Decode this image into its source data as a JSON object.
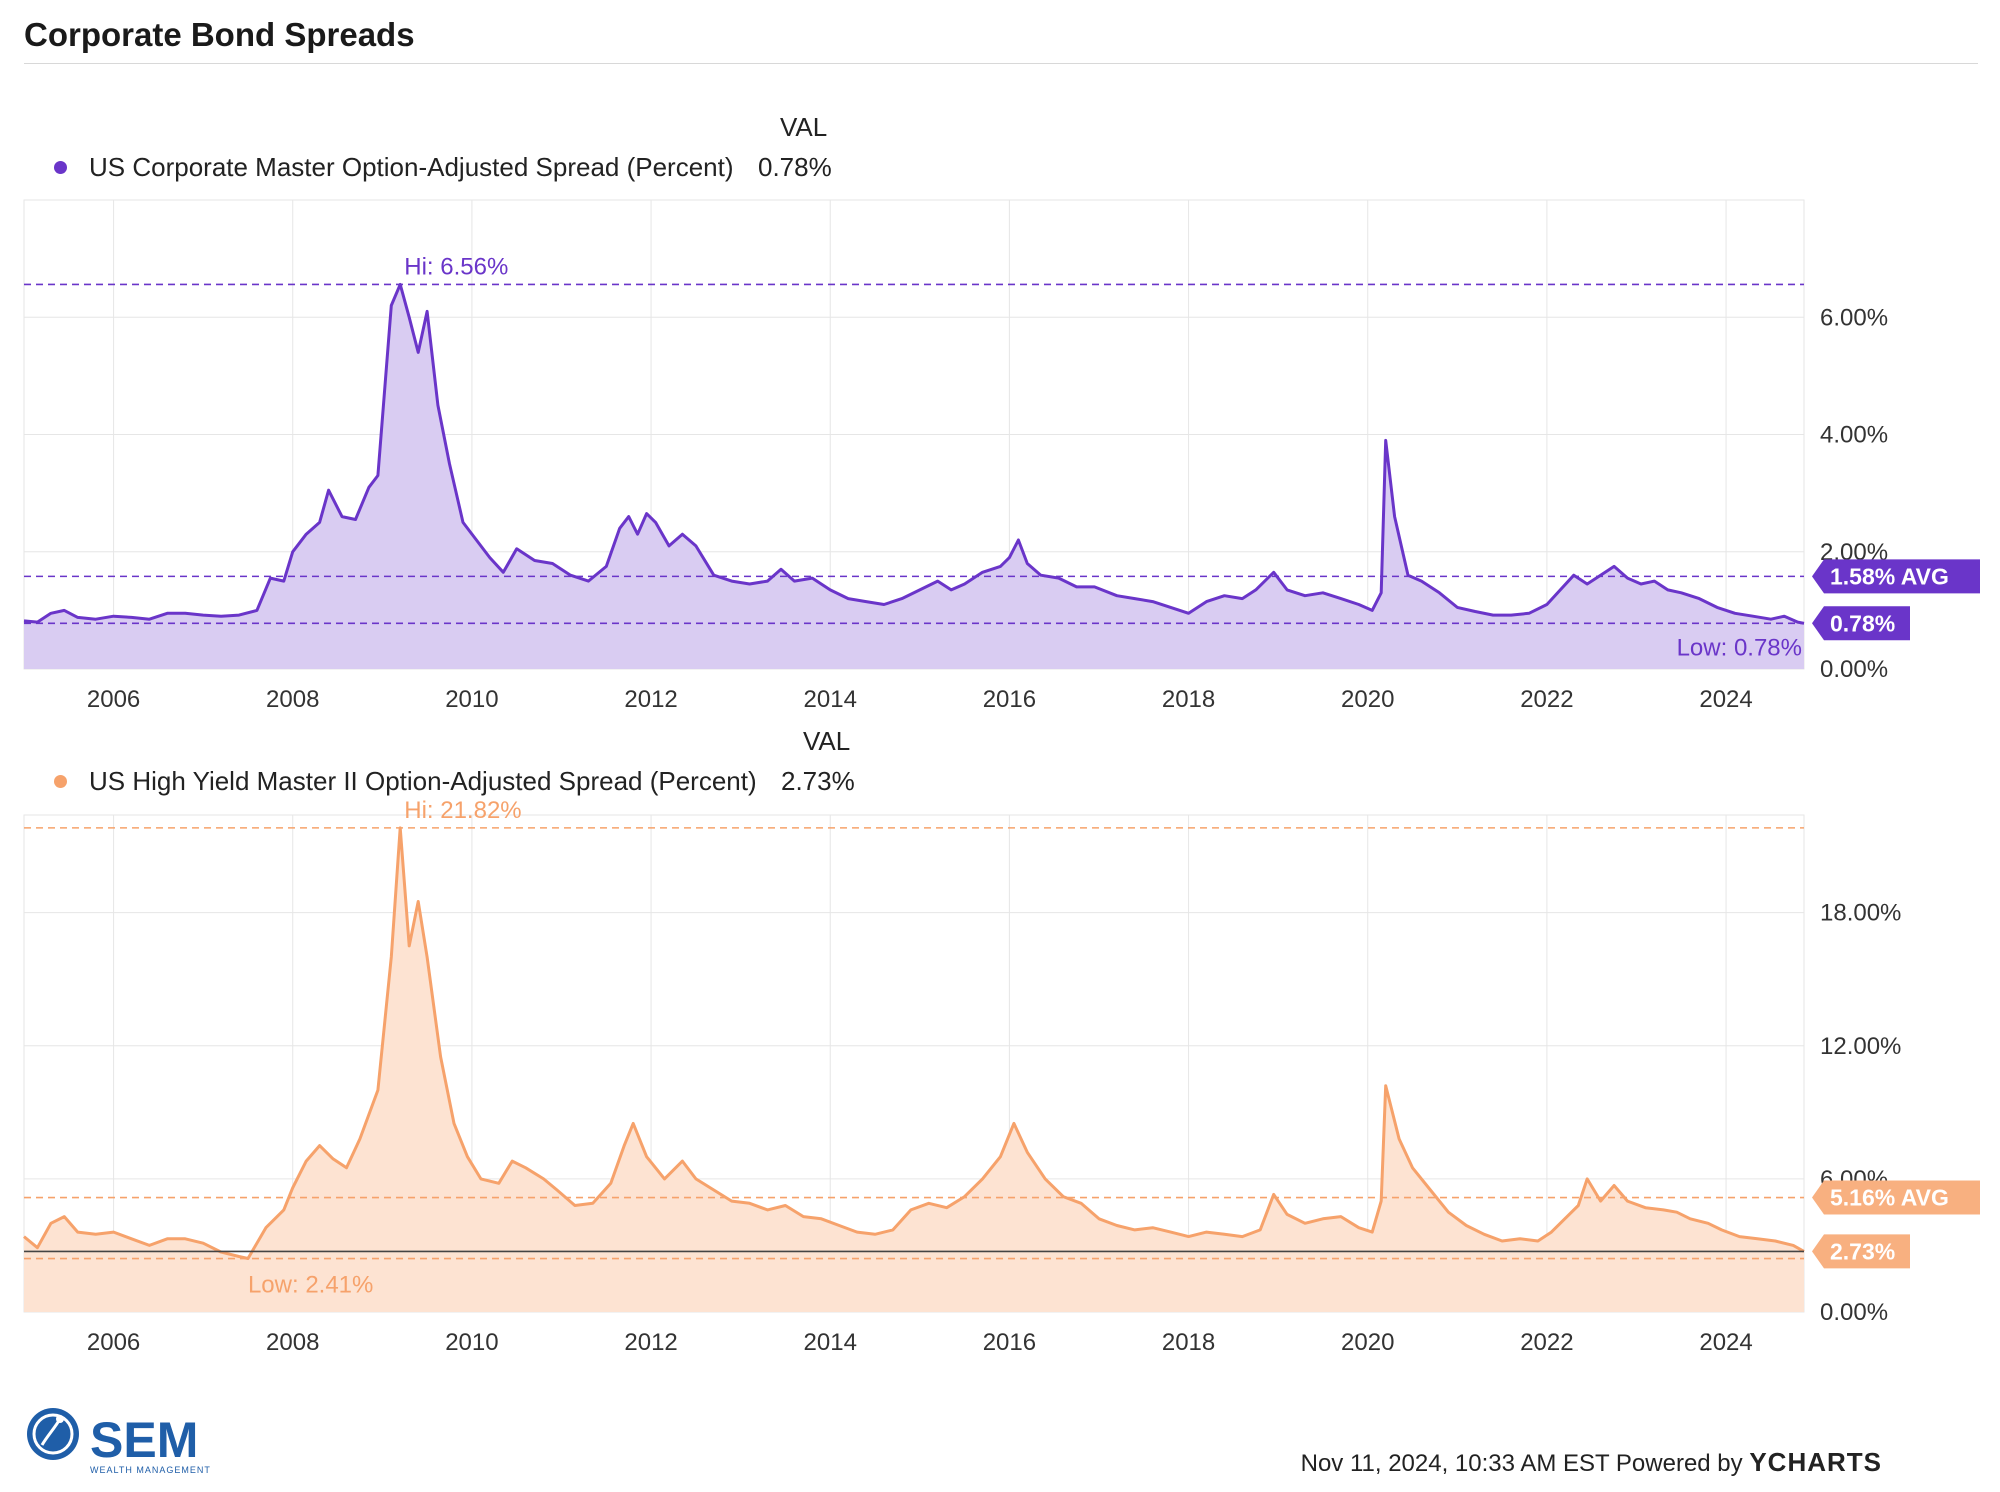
{
  "title": "Corporate Bond Spreads",
  "val_header": "VAL",
  "footer": {
    "timestamp": "Nov 11, 2024, 10:33 AM EST Powered by",
    "brand": "YCHARTS"
  },
  "logo": {
    "name": "SEM",
    "tagline": "WEALTH MANAGEMENT"
  },
  "colors": {
    "purple": "#6a35c9",
    "purple_fill": "#d9ccf2",
    "orange": "#f6a26b",
    "orange_fill": "#fde3d2",
    "grid": "#e6e6e6"
  },
  "chart_data": [
    {
      "type": "area",
      "legend": "US Corporate Master Option-Adjusted Spread (Percent)",
      "current_value": "0.78%",
      "x_ticks": [
        "2006",
        "2008",
        "2010",
        "2012",
        "2014",
        "2016",
        "2018",
        "2020",
        "2022",
        "2024"
      ],
      "y_ticks": [
        "0.00%",
        "2.00%",
        "4.00%",
        "6.00%"
      ],
      "y_tick_values": [
        0,
        2,
        4,
        6
      ],
      "xlim": [
        2005.0,
        2024.87
      ],
      "ylim": [
        0,
        8.0
      ],
      "hi_label": "Hi: 6.56%",
      "hi_value": 6.56,
      "low_label": "Low: 0.78%",
      "low_value": 0.78,
      "avg_label": "1.58% AVG",
      "avg_value": 1.58,
      "last_label": "0.78%",
      "points": [
        [
          2005.0,
          0.82
        ],
        [
          2005.15,
          0.8
        ],
        [
          2005.3,
          0.95
        ],
        [
          2005.45,
          1.0
        ],
        [
          2005.6,
          0.88
        ],
        [
          2005.8,
          0.85
        ],
        [
          2006.0,
          0.9
        ],
        [
          2006.2,
          0.88
        ],
        [
          2006.4,
          0.85
        ],
        [
          2006.6,
          0.95
        ],
        [
          2006.8,
          0.95
        ],
        [
          2007.0,
          0.92
        ],
        [
          2007.2,
          0.9
        ],
        [
          2007.4,
          0.92
        ],
        [
          2007.6,
          1.0
        ],
        [
          2007.75,
          1.55
        ],
        [
          2007.9,
          1.5
        ],
        [
          2008.0,
          2.0
        ],
        [
          2008.15,
          2.3
        ],
        [
          2008.3,
          2.5
        ],
        [
          2008.4,
          3.05
        ],
        [
          2008.55,
          2.6
        ],
        [
          2008.7,
          2.55
        ],
        [
          2008.85,
          3.1
        ],
        [
          2008.95,
          3.3
        ],
        [
          2009.1,
          6.2
        ],
        [
          2009.2,
          6.56
        ],
        [
          2009.3,
          6.0
        ],
        [
          2009.4,
          5.4
        ],
        [
          2009.5,
          6.1
        ],
        [
          2009.62,
          4.5
        ],
        [
          2009.75,
          3.5
        ],
        [
          2009.9,
          2.5
        ],
        [
          2010.05,
          2.2
        ],
        [
          2010.2,
          1.9
        ],
        [
          2010.35,
          1.65
        ],
        [
          2010.5,
          2.05
        ],
        [
          2010.7,
          1.85
        ],
        [
          2010.9,
          1.8
        ],
        [
          2011.1,
          1.6
        ],
        [
          2011.3,
          1.5
        ],
        [
          2011.5,
          1.75
        ],
        [
          2011.65,
          2.4
        ],
        [
          2011.75,
          2.6
        ],
        [
          2011.85,
          2.3
        ],
        [
          2011.95,
          2.65
        ],
        [
          2012.05,
          2.5
        ],
        [
          2012.2,
          2.1
        ],
        [
          2012.35,
          2.3
        ],
        [
          2012.5,
          2.1
        ],
        [
          2012.7,
          1.6
        ],
        [
          2012.9,
          1.5
        ],
        [
          2013.1,
          1.45
        ],
        [
          2013.3,
          1.5
        ],
        [
          2013.45,
          1.7
        ],
        [
          2013.6,
          1.5
        ],
        [
          2013.8,
          1.55
        ],
        [
          2014.0,
          1.35
        ],
        [
          2014.2,
          1.2
        ],
        [
          2014.4,
          1.15
        ],
        [
          2014.6,
          1.1
        ],
        [
          2014.8,
          1.2
        ],
        [
          2015.0,
          1.35
        ],
        [
          2015.2,
          1.5
        ],
        [
          2015.35,
          1.35
        ],
        [
          2015.5,
          1.45
        ],
        [
          2015.7,
          1.65
        ],
        [
          2015.9,
          1.75
        ],
        [
          2016.0,
          1.9
        ],
        [
          2016.1,
          2.2
        ],
        [
          2016.2,
          1.8
        ],
        [
          2016.35,
          1.6
        ],
        [
          2016.55,
          1.55
        ],
        [
          2016.75,
          1.4
        ],
        [
          2016.95,
          1.4
        ],
        [
          2017.2,
          1.25
        ],
        [
          2017.4,
          1.2
        ],
        [
          2017.6,
          1.15
        ],
        [
          2017.8,
          1.05
        ],
        [
          2018.0,
          0.95
        ],
        [
          2018.2,
          1.15
        ],
        [
          2018.4,
          1.25
        ],
        [
          2018.6,
          1.2
        ],
        [
          2018.75,
          1.35
        ],
        [
          2018.95,
          1.65
        ],
        [
          2019.1,
          1.35
        ],
        [
          2019.3,
          1.25
        ],
        [
          2019.5,
          1.3
        ],
        [
          2019.7,
          1.2
        ],
        [
          2019.9,
          1.1
        ],
        [
          2020.05,
          1.0
        ],
        [
          2020.15,
          1.3
        ],
        [
          2020.2,
          3.9
        ],
        [
          2020.3,
          2.6
        ],
        [
          2020.45,
          1.6
        ],
        [
          2020.6,
          1.5
        ],
        [
          2020.8,
          1.3
        ],
        [
          2021.0,
          1.05
        ],
        [
          2021.2,
          0.98
        ],
        [
          2021.4,
          0.92
        ],
        [
          2021.6,
          0.92
        ],
        [
          2021.8,
          0.95
        ],
        [
          2022.0,
          1.1
        ],
        [
          2022.15,
          1.35
        ],
        [
          2022.3,
          1.6
        ],
        [
          2022.45,
          1.45
        ],
        [
          2022.6,
          1.6
        ],
        [
          2022.75,
          1.75
        ],
        [
          2022.9,
          1.55
        ],
        [
          2023.05,
          1.45
        ],
        [
          2023.2,
          1.5
        ],
        [
          2023.35,
          1.35
        ],
        [
          2023.5,
          1.3
        ],
        [
          2023.7,
          1.2
        ],
        [
          2023.9,
          1.05
        ],
        [
          2024.1,
          0.95
        ],
        [
          2024.3,
          0.9
        ],
        [
          2024.5,
          0.85
        ],
        [
          2024.65,
          0.9
        ],
        [
          2024.8,
          0.8
        ],
        [
          2024.87,
          0.78
        ]
      ]
    },
    {
      "type": "area",
      "legend": "US High Yield Master II Option-Adjusted Spread (Percent)",
      "current_value": "2.73%",
      "x_ticks": [
        "2006",
        "2008",
        "2010",
        "2012",
        "2014",
        "2016",
        "2018",
        "2020",
        "2022",
        "2024"
      ],
      "y_ticks": [
        "0.00%",
        "6.00%",
        "12.00%",
        "18.00%"
      ],
      "y_tick_values": [
        0,
        6,
        12,
        18
      ],
      "xlim": [
        2005.0,
        2024.87
      ],
      "ylim": [
        0,
        22.4
      ],
      "hi_label": "Hi: 21.82%",
      "hi_value": 21.82,
      "low_label": "Low: 2.41%",
      "low_value": 2.41,
      "avg_label": "5.16% AVG",
      "avg_value": 5.16,
      "last_label": "2.73%",
      "points": [
        [
          2005.0,
          3.4
        ],
        [
          2005.15,
          2.9
        ],
        [
          2005.3,
          4.0
        ],
        [
          2005.45,
          4.3
        ],
        [
          2005.6,
          3.6
        ],
        [
          2005.8,
          3.5
        ],
        [
          2006.0,
          3.6
        ],
        [
          2006.2,
          3.3
        ],
        [
          2006.4,
          3.0
        ],
        [
          2006.6,
          3.3
        ],
        [
          2006.8,
          3.3
        ],
        [
          2007.0,
          3.1
        ],
        [
          2007.2,
          2.7
        ],
        [
          2007.4,
          2.5
        ],
        [
          2007.5,
          2.41
        ],
        [
          2007.7,
          3.8
        ],
        [
          2007.9,
          4.6
        ],
        [
          2008.0,
          5.6
        ],
        [
          2008.15,
          6.8
        ],
        [
          2008.3,
          7.5
        ],
        [
          2008.45,
          6.9
        ],
        [
          2008.6,
          6.5
        ],
        [
          2008.75,
          7.8
        ],
        [
          2008.95,
          10.0
        ],
        [
          2009.1,
          16.0
        ],
        [
          2009.2,
          21.82
        ],
        [
          2009.3,
          16.5
        ],
        [
          2009.4,
          18.5
        ],
        [
          2009.5,
          16.0
        ],
        [
          2009.65,
          11.5
        ],
        [
          2009.8,
          8.5
        ],
        [
          2009.95,
          7.0
        ],
        [
          2010.1,
          6.0
        ],
        [
          2010.3,
          5.8
        ],
        [
          2010.45,
          6.8
        ],
        [
          2010.6,
          6.5
        ],
        [
          2010.8,
          6.0
        ],
        [
          2010.95,
          5.5
        ],
        [
          2011.15,
          4.8
        ],
        [
          2011.35,
          4.9
        ],
        [
          2011.55,
          5.8
        ],
        [
          2011.7,
          7.5
        ],
        [
          2011.8,
          8.5
        ],
        [
          2011.95,
          7.0
        ],
        [
          2012.15,
          6.0
        ],
        [
          2012.35,
          6.8
        ],
        [
          2012.5,
          6.0
        ],
        [
          2012.7,
          5.5
        ],
        [
          2012.9,
          5.0
        ],
        [
          2013.1,
          4.9
        ],
        [
          2013.3,
          4.6
        ],
        [
          2013.5,
          4.8
        ],
        [
          2013.7,
          4.3
        ],
        [
          2013.9,
          4.2
        ],
        [
          2014.1,
          3.9
        ],
        [
          2014.3,
          3.6
        ],
        [
          2014.5,
          3.5
        ],
        [
          2014.7,
          3.7
        ],
        [
          2014.9,
          4.6
        ],
        [
          2015.1,
          4.9
        ],
        [
          2015.3,
          4.7
        ],
        [
          2015.5,
          5.2
        ],
        [
          2015.7,
          6.0
        ],
        [
          2015.9,
          7.0
        ],
        [
          2016.05,
          8.5
        ],
        [
          2016.2,
          7.2
        ],
        [
          2016.4,
          6.0
        ],
        [
          2016.6,
          5.2
        ],
        [
          2016.8,
          4.9
        ],
        [
          2017.0,
          4.2
        ],
        [
          2017.2,
          3.9
        ],
        [
          2017.4,
          3.7
        ],
        [
          2017.6,
          3.8
        ],
        [
          2017.8,
          3.6
        ],
        [
          2018.0,
          3.4
        ],
        [
          2018.2,
          3.6
        ],
        [
          2018.4,
          3.5
        ],
        [
          2018.6,
          3.4
        ],
        [
          2018.8,
          3.7
        ],
        [
          2018.95,
          5.3
        ],
        [
          2019.1,
          4.4
        ],
        [
          2019.3,
          4.0
        ],
        [
          2019.5,
          4.2
        ],
        [
          2019.7,
          4.3
        ],
        [
          2019.9,
          3.8
        ],
        [
          2020.05,
          3.6
        ],
        [
          2020.15,
          5.0
        ],
        [
          2020.2,
          10.2
        ],
        [
          2020.35,
          7.8
        ],
        [
          2020.5,
          6.5
        ],
        [
          2020.7,
          5.5
        ],
        [
          2020.9,
          4.5
        ],
        [
          2021.1,
          3.9
        ],
        [
          2021.3,
          3.5
        ],
        [
          2021.5,
          3.2
        ],
        [
          2021.7,
          3.3
        ],
        [
          2021.9,
          3.2
        ],
        [
          2022.05,
          3.6
        ],
        [
          2022.2,
          4.2
        ],
        [
          2022.35,
          4.8
        ],
        [
          2022.45,
          6.0
        ],
        [
          2022.6,
          5.0
        ],
        [
          2022.75,
          5.7
        ],
        [
          2022.9,
          5.0
        ],
        [
          2023.1,
          4.7
        ],
        [
          2023.3,
          4.6
        ],
        [
          2023.45,
          4.5
        ],
        [
          2023.6,
          4.2
        ],
        [
          2023.8,
          4.0
        ],
        [
          2023.95,
          3.7
        ],
        [
          2024.15,
          3.4
        ],
        [
          2024.35,
          3.3
        ],
        [
          2024.55,
          3.2
        ],
        [
          2024.75,
          3.0
        ],
        [
          2024.87,
          2.73
        ]
      ]
    }
  ]
}
